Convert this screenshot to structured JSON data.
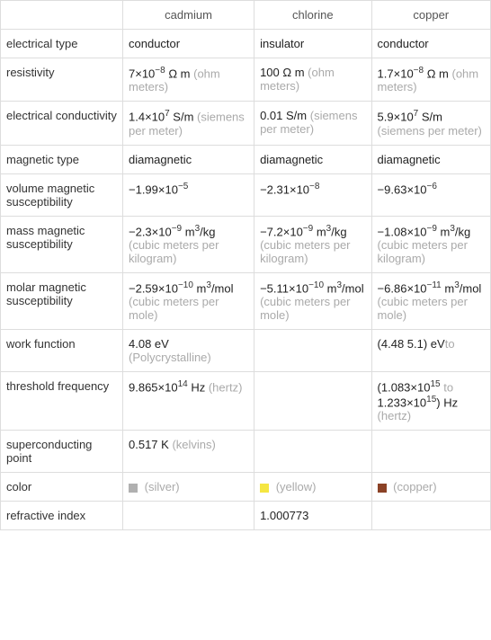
{
  "headers": [
    "cadmium",
    "chlorine",
    "copper"
  ],
  "rows": [
    {
      "label": "electrical type",
      "cells": [
        {
          "value": "conductor"
        },
        {
          "value": "insulator"
        },
        {
          "value": "conductor"
        }
      ]
    },
    {
      "label": "resistivity",
      "cells": [
        {
          "value": "7×10",
          "sup": "−8",
          "value2": " Ω m",
          "unit": "(ohm meters)"
        },
        {
          "value": "100 Ω m",
          "unit": "(ohm meters)"
        },
        {
          "value": "1.7×10",
          "sup": "−8",
          "value2": " Ω m",
          "unit": "(ohm meters)"
        }
      ]
    },
    {
      "label": "electrical conductivity",
      "cells": [
        {
          "value": "1.4×10",
          "sup": "7",
          "value2": " S/m",
          "unit": "(siemens per meter)"
        },
        {
          "value": "0.01 S/m",
          "unit": "(siemens per meter)"
        },
        {
          "value": "5.9×10",
          "sup": "7",
          "value2": " S/m",
          "unit": "(siemens per meter)"
        }
      ]
    },
    {
      "label": "magnetic type",
      "cells": [
        {
          "value": "diamagnetic"
        },
        {
          "value": "diamagnetic"
        },
        {
          "value": "diamagnetic"
        }
      ]
    },
    {
      "label": "volume magnetic susceptibility",
      "cells": [
        {
          "value": "−1.99×10",
          "sup": "−5"
        },
        {
          "value": "−2.31×10",
          "sup": "−8"
        },
        {
          "value": "−9.63×10",
          "sup": "−6"
        }
      ]
    },
    {
      "label": "mass magnetic susceptibility",
      "cells": [
        {
          "value": "−2.3×10",
          "sup": "−9",
          "value2": " m",
          "sup2": "3",
          "value3": "/kg",
          "unit": "(cubic meters per kilogram)"
        },
        {
          "value": "−7.2×10",
          "sup": "−9",
          "value2": " m",
          "sup2": "3",
          "value3": "/kg",
          "unit": "(cubic meters per kilogram)"
        },
        {
          "value": "−1.08×10",
          "sup": "−9",
          "value2": " m",
          "sup2": "3",
          "value3": "/kg",
          "unit": "(cubic meters per kilogram)"
        }
      ]
    },
    {
      "label": "molar magnetic susceptibility",
      "cells": [
        {
          "value": "−2.59×10",
          "sup": "−10",
          "value2": " m",
          "sup2": "3",
          "value3": "/mol",
          "unit": "(cubic meters per mole)"
        },
        {
          "value": "−5.11×10",
          "sup": "−10",
          "value2": " m",
          "sup2": "3",
          "value3": "/mol",
          "unit": "(cubic meters per mole)"
        },
        {
          "value": "−6.86×10",
          "sup": "−11",
          "value2": " m",
          "sup2": "3",
          "value3": "/mol",
          "unit": "(cubic meters per mole)"
        }
      ]
    },
    {
      "label": "work function",
      "cells": [
        {
          "value": "4.08 eV",
          "unit": "(Polycrystalline)"
        },
        {
          "value": ""
        },
        {
          "value": "(4.48 ",
          "span_unit": "to",
          "value2": " 5.1) eV"
        }
      ]
    },
    {
      "label": "threshold frequency",
      "cells": [
        {
          "value": "9.865×10",
          "sup": "14",
          "value2": " Hz",
          "unit": "(hertz)"
        },
        {
          "value": ""
        },
        {
          "value": "(1.083×10",
          "sup": "15",
          "value2": " ",
          "span_unit": "to",
          "value3": " 1.233×10",
          "sup3": "15",
          "value4": ") Hz",
          "unit": "(hertz)"
        }
      ]
    },
    {
      "label": "superconducting point",
      "cells": [
        {
          "value": "0.517 K",
          "unit": "(kelvins)"
        },
        {
          "value": ""
        },
        {
          "value": ""
        }
      ]
    },
    {
      "label": "color",
      "cells": [
        {
          "swatch": "#b0b0b0",
          "unit": "(silver)"
        },
        {
          "swatch": "#f5e642",
          "unit": "(yellow)"
        },
        {
          "swatch": "#8b4226",
          "unit": "(copper)"
        }
      ]
    },
    {
      "label": "refractive index",
      "cells": [
        {
          "value": ""
        },
        {
          "value": "1.000773"
        },
        {
          "value": ""
        }
      ]
    }
  ],
  "colors": {
    "border": "#dddddd",
    "text": "#333333",
    "unit_text": "#aaaaaa",
    "background": "#ffffff"
  }
}
